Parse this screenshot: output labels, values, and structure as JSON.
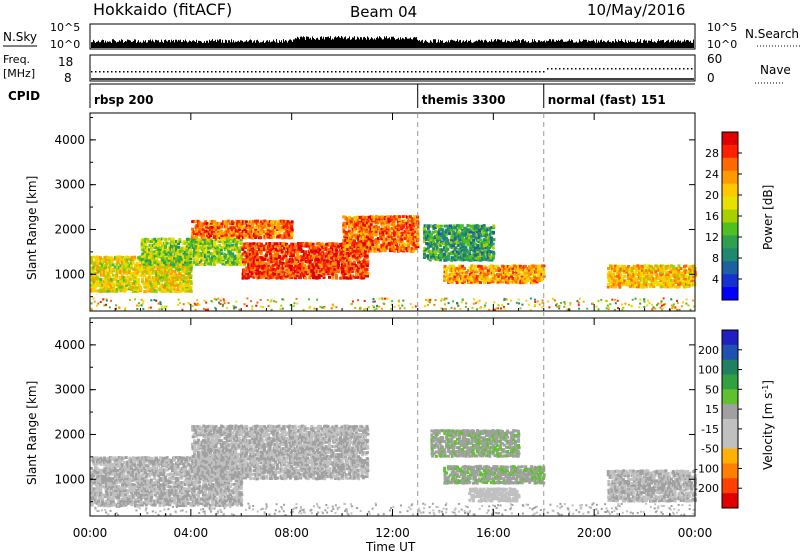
{
  "header": {
    "radar": "Hokkaido (fitACF)",
    "beam": "Beam 04",
    "date": "10/May/2016"
  },
  "summary": {
    "nsky_label": "N.Sky",
    "nsky_ticks": [
      "10^5",
      "10^0"
    ],
    "nsearch_label": "N.Search",
    "nsearch_ticks": [
      "10^5",
      "10^0"
    ],
    "freq_label_line1": "Freq.",
    "freq_label_line2": "[MHz]",
    "freq_ticks": [
      "18",
      "8"
    ],
    "nave_label": "Nave",
    "nave_ticks": [
      "60",
      "0"
    ],
    "cpid_label": "CPID"
  },
  "cpid_segments": [
    {
      "label": "rbsp 200",
      "start_h": 0
    },
    {
      "label": "themis 3300",
      "start_h": 13
    },
    {
      "label": "normal (fast) 151",
      "start_h": 18
    }
  ],
  "power_panel": {
    "ylabel": "Slant Range [km]",
    "yticks": [
      1000,
      2000,
      3000,
      4000
    ],
    "colorbar_label": "Power [dB]",
    "colorbar_ticks": [
      "28",
      "24",
      "20",
      "16",
      "12",
      "8",
      "4"
    ],
    "colorbar_colors": [
      "#e00000",
      "#ff2000",
      "#ff6a00",
      "#ff9a00",
      "#ffc800",
      "#e8e000",
      "#a8d000",
      "#50c020",
      "#30a050",
      "#208870",
      "#1c60a0",
      "#1830d0",
      "#0000ff"
    ]
  },
  "velocity_panel": {
    "ylabel": "Slant Range [km]",
    "yticks": [
      1000,
      2000,
      3000,
      4000
    ],
    "colorbar_label": "Velocity [m s",
    "colorbar_unit_sup": "-1",
    "colorbar_unit_close": "]",
    "colorbar_ticks": [
      "200",
      "100",
      "50",
      "15",
      "-15",
      "-50",
      "-100",
      "-200"
    ],
    "colorbar_colors": [
      "#2020c0",
      "#2050b0",
      "#208060",
      "#30a040",
      "#60c030",
      "#a0a0a0",
      "#c0c0c0",
      "#c0c0c0",
      "#ffb000",
      "#ff8000",
      "#ff4000",
      "#e00000"
    ]
  },
  "xaxis": {
    "label": "Time UT",
    "ticks": [
      "00:00",
      "04:00",
      "08:00",
      "12:00",
      "16:00",
      "20:00",
      "00:00"
    ]
  },
  "chart_data": [
    {
      "type": "heatmap",
      "title": "Beam 04",
      "xlabel": "Time UT",
      "ylabel": "Slant Range [km]",
      "xlim_hours": [
        0,
        24
      ],
      "ylim": [
        180,
        4600
      ],
      "value_label": "Power [dB]",
      "colorbar_range": [
        0,
        30
      ],
      "segments": [
        {
          "x": [
            0,
            4
          ],
          "y": [
            600,
            1400
          ],
          "value": 18
        },
        {
          "x": [
            2,
            6
          ],
          "y": [
            1200,
            1800
          ],
          "value": 14
        },
        {
          "x": [
            4,
            8
          ],
          "y": [
            1800,
            2200
          ],
          "value": 24
        },
        {
          "x": [
            6,
            11
          ],
          "y": [
            900,
            1700
          ],
          "value": 26
        },
        {
          "x": [
            10,
            13
          ],
          "y": [
            1500,
            2300
          ],
          "value": 24
        },
        {
          "x": [
            13.2,
            16
          ],
          "y": [
            1300,
            2100
          ],
          "value": 10
        },
        {
          "x": [
            14,
            18
          ],
          "y": [
            800,
            1200
          ],
          "value": 22
        },
        {
          "x": [
            20.5,
            24
          ],
          "y": [
            700,
            1200
          ],
          "value": 20
        }
      ]
    },
    {
      "type": "heatmap",
      "title": "Beam 04",
      "xlabel": "Time UT",
      "ylabel": "Slant Range [km]",
      "xlim_hours": [
        0,
        24
      ],
      "ylim": [
        180,
        4600
      ],
      "value_label": "Velocity [m s-1]",
      "colorbar_range": [
        -250,
        250
      ],
      "segments": [
        {
          "x": [
            0,
            6
          ],
          "y": [
            400,
            1500
          ],
          "value": 0
        },
        {
          "x": [
            4,
            11
          ],
          "y": [
            1000,
            2200
          ],
          "value": 0
        },
        {
          "x": [
            13.5,
            17
          ],
          "y": [
            1500,
            2100
          ],
          "value": 30
        },
        {
          "x": [
            14,
            18
          ],
          "y": [
            900,
            1300
          ],
          "value": 30
        },
        {
          "x": [
            15,
            17
          ],
          "y": [
            500,
            800
          ],
          "value": -40
        },
        {
          "x": [
            20.5,
            24
          ],
          "y": [
            500,
            1200
          ],
          "value": 0
        }
      ]
    }
  ]
}
